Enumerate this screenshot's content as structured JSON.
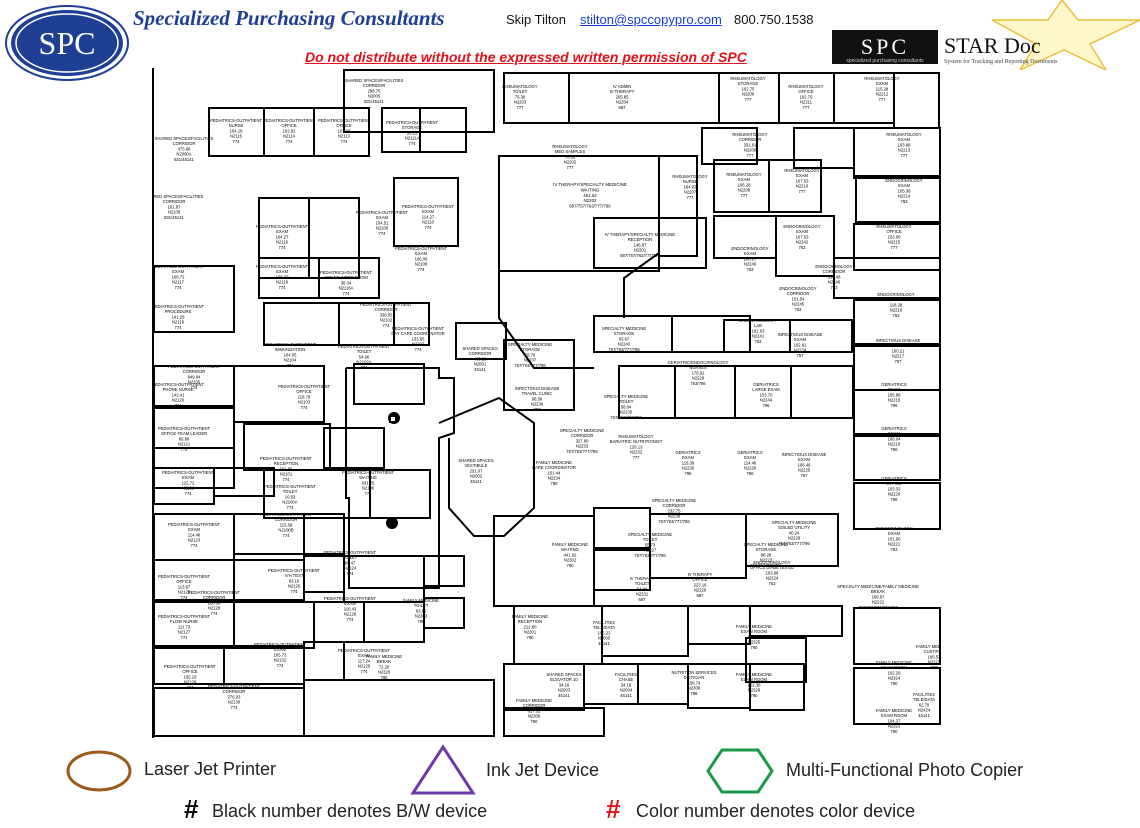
{
  "header": {
    "logo_text": "SPC",
    "company_name": "Specialized Purchasing Consultants",
    "contact_name": "Skip Tilton",
    "contact_email": "stilton@spccopypro.com",
    "contact_phone": "800.750.1538",
    "warning": "Do not distribute without the expressed written permission of SPC",
    "stardoc_logo": "SPC",
    "stardoc_title": "STAR Doc",
    "stardoc_tagline": "specialized purchasing consultants",
    "stardoc_subtitle": "System for Tracking and Reporting Documents"
  },
  "floorplan": {
    "rooms": [
      {
        "id": "r1",
        "lines": [
          "SHARED SPACES/FACILITIES",
          "CORRIDOR",
          "298.75",
          "N2005",
          "831/45141"
        ]
      },
      {
        "id": "r2",
        "lines": [
          "RHEUMATOLOGY",
          "TOILET",
          "75.30",
          "N2203",
          "777"
        ]
      },
      {
        "id": "r3",
        "lines": [
          "IV ADMIN",
          "IV THERAPY",
          "265.85",
          "N2204",
          "687"
        ]
      },
      {
        "id": "r4",
        "lines": [
          "RHEUMATOLOGY",
          "STORAGE",
          "102.75",
          "N2206",
          "777"
        ]
      },
      {
        "id": "r5",
        "lines": [
          "RHEUMATOLOGY",
          "OFFICE",
          "102.75",
          "N2211",
          "777"
        ]
      },
      {
        "id": "r6",
        "lines": [
          "RHEUMATOLOGY",
          "EXAM",
          "115.28",
          "N2212",
          "777"
        ]
      },
      {
        "id": "r7",
        "lines": [
          "PEDIATRICS-OUTPATIENT",
          "NURSE",
          "104.18",
          "N2115",
          "774"
        ]
      },
      {
        "id": "r8",
        "lines": [
          "PEDIATRICS-OUTPATIENT",
          "OFFICE",
          "102.82",
          "N2114",
          "774"
        ]
      },
      {
        "id": "r9",
        "lines": [
          "PEDIATRICS-OUTPATIENT",
          "OFFICE",
          "107.06",
          "N2113",
          "774"
        ]
      },
      {
        "id": "r10",
        "lines": [
          "PEDIATRICS-OUTPATIENT",
          "STORAGE",
          "56.15",
          "N2111A",
          "774"
        ]
      },
      {
        "id": "r11",
        "lines": [
          "SHARED SPACES/FACILITIES",
          "CORRIDOR",
          "473.68",
          "N2000A",
          "831/45141"
        ]
      },
      {
        "id": "r12",
        "lines": [
          "RHEUMATOLOGY",
          "CORRIDOR",
          "331.61",
          "N2200",
          "777"
        ]
      },
      {
        "id": "r13",
        "lines": [
          "RHEUMATOLOGY",
          "EXAM",
          "103.88",
          "N2213",
          "777"
        ]
      },
      {
        "id": "r14",
        "lines": [
          "RHEUMATOLOGY",
          "MED SAMPLES",
          "70.56",
          "N2202",
          "777"
        ]
      },
      {
        "id": "r15",
        "lines": [
          "IV THERAPY/SPECIALTY MEDICINE",
          "WAITING",
          "461.62",
          "N2202",
          "687/757/763/777/796"
        ]
      },
      {
        "id": "r16",
        "lines": [
          "RHEUMATOLOGY",
          "NURSE",
          "164.03",
          "N2207",
          "777"
        ]
      },
      {
        "id": "r17",
        "lines": [
          "RHEUMATOLOGY",
          "EXAM",
          "106.28",
          "N2208",
          "777"
        ]
      },
      {
        "id": "r18",
        "lines": [
          "RHEUMATOLOGY",
          "EXAM",
          "107.53",
          "N2210",
          "777"
        ]
      },
      {
        "id": "r19",
        "lines": [
          "ENDOCRINOLOGY",
          "EXAM",
          "105.38",
          "N2214",
          "763"
        ]
      },
      {
        "id": "r20",
        "lines": [
          "SHARED SPACES/FACILITIES",
          "CORRIDOR",
          "101.87",
          "N2108",
          "831/45141"
        ]
      },
      {
        "id": "r21",
        "lines": [
          "PEDIATRICS-OUTPATIENT",
          "EXAM",
          "114.27",
          "N2110",
          "774"
        ]
      },
      {
        "id": "r22",
        "lines": [
          "PEDIATRICS-OUTPATIENT",
          "EXAM",
          "104.51",
          "N2109",
          "774"
        ]
      },
      {
        "id": "r23",
        "lines": [
          "PEDIATRICS-OUTPATIENT",
          "EXAM",
          "104.27",
          "N2116",
          "774"
        ]
      },
      {
        "id": "r24",
        "lines": [
          "IV THERAPY/SPECIALTY MEDICINE",
          "RECEPTION",
          "146.87",
          "N2201",
          "687/757/763/777/796"
        ]
      },
      {
        "id": "r25",
        "lines": [
          "ENDOCRINOLOGY",
          "EXAM",
          "107.53",
          "N2242",
          "763"
        ]
      },
      {
        "id": "r26",
        "lines": [
          "ENDOCRINOLOGY",
          "EXAM",
          "108.27",
          "N2240",
          "763"
        ]
      },
      {
        "id": "r27",
        "lines": [
          "RHEUMATOLOGY",
          "OFFICE",
          "103.00",
          "N2215",
          "777"
        ]
      },
      {
        "id": "r28",
        "lines": [
          "PEDIATRICS-OUTPATIENT",
          "EXAM",
          "106.06",
          "N2108",
          "774"
        ]
      },
      {
        "id": "r29",
        "lines": [
          "PEDIATRICS-OUTPATIENT",
          "EXAM",
          "108.00",
          "N2118",
          "774"
        ]
      },
      {
        "id": "r30",
        "lines": [
          "PEDIATRICS-OUTPATIENT",
          "SOILED WORK ROOM",
          "38.34",
          "N2118A",
          "774"
        ]
      },
      {
        "id": "r31",
        "lines": [
          "ENDOCRINOLOGY",
          "CORRIDOR",
          "536.48",
          "N2246",
          "763"
        ]
      },
      {
        "id": "r32",
        "lines": [
          "PEDIATRICS-OUTPATIENT",
          "EXAM",
          "108.72",
          "N2117",
          "774"
        ]
      },
      {
        "id": "r33",
        "lines": [
          "ENDOCRINOLOGY",
          "CORRIDOR",
          "151.54",
          "N2245",
          "763"
        ]
      },
      {
        "id": "r34",
        "lines": [
          "ENDOCRINOLOGY",
          "SHARED OFFICE",
          "118.28",
          "N2216",
          "763"
        ]
      },
      {
        "id": "r35",
        "lines": [
          "PEDIATRICS-OUTPATIENT",
          "PROCEDURE",
          "141.28",
          "N2119",
          "774"
        ]
      },
      {
        "id": "r36",
        "lines": [
          "PEDIATRICS-OUTPATIENT",
          "CORRIDOR",
          "338.05",
          "N2102",
          "774"
        ]
      },
      {
        "id": "r37",
        "lines": [
          "SPECIALTY MEDICINE",
          "STORAGE",
          "83.67",
          "N2243",
          "757/763/777/796"
        ]
      },
      {
        "id": "r38",
        "lines": [
          "ENDOCRINOLOGY",
          "LAB",
          "102.63",
          "N2241",
          "763"
        ]
      },
      {
        "id": "r39",
        "lines": [
          "INFECTIOUS DISEASE",
          "EXAM",
          "102.81",
          "N2234",
          "757"
        ]
      },
      {
        "id": "r40",
        "lines": [
          "INFECTIOUS DISEASE",
          "OFFICE",
          "100.21",
          "N2217",
          "757"
        ]
      },
      {
        "id": "r41",
        "lines": [
          "PEDIATRICS-OUTPATIENT",
          "IMMUNIZATION",
          "104.05",
          "N2104",
          "774"
        ]
      },
      {
        "id": "r42",
        "lines": [
          "PEDIATRICS-OUTPATIENT",
          "TOILET",
          "54.66",
          "N2102A",
          "774"
        ]
      },
      {
        "id": "r43",
        "lines": [
          "PEDIATRICS-OUTPATIENT",
          "DAY CARE COORDINATOR",
          "133.85",
          "N2107",
          "774"
        ]
      },
      {
        "id": "r44",
        "lines": [
          "SHARED SPACES",
          "CORRIDOR",
          "463.29",
          "N2001",
          "45141"
        ]
      },
      {
        "id": "r45",
        "lines": [
          "SPECIALTY MEDICINE",
          "STORAGE",
          "78.70",
          "N2237",
          "757/763/777/796"
        ]
      },
      {
        "id": "r46",
        "lines": [
          "GERIATRIC/ENDOCRINOLOGY",
          "NURSES",
          "176.91",
          "N2229",
          "763/796"
        ]
      },
      {
        "id": "r47",
        "lines": [
          "GERIATRICS",
          "LARGE EXAM",
          "153.70",
          "N2244",
          "796"
        ]
      },
      {
        "id": "r48",
        "lines": [
          "GERIATRICS",
          "EXAM",
          "105.88",
          "N2218",
          "796"
        ]
      },
      {
        "id": "r49",
        "lines": [
          "PEDIATRICS-OUTPATIENT",
          "CORRIDOR",
          "849.84",
          "N2105",
          "774"
        ]
      },
      {
        "id": "r50",
        "lines": [
          "PEDIATRICS-OUTPATIENT",
          "OFFICE",
          "118.79",
          "N2103",
          "774"
        ]
      },
      {
        "id": "r51",
        "lines": [
          "INFECTIOUS DISEASE",
          "TRAVEL CLINIC",
          "98.58",
          "N2236",
          "757"
        ]
      },
      {
        "id": "r52",
        "lines": [
          "SPECIALTY MEDICINE",
          "TOILET",
          "58.04",
          "N2235",
          "757/763/777/796"
        ]
      },
      {
        "id": "r53",
        "lines": [
          "PEDIATRICS-OUTPATIENT",
          "PHONE NURSE",
          "142.41",
          "N2120",
          "774"
        ]
      },
      {
        "id": "r54",
        "lines": [
          "PEDIATRICS-OUTPATIENT",
          "OFFICE-TEAM LEADER",
          "80.86",
          "N2121",
          "774"
        ]
      },
      {
        "id": "r55",
        "lines": [
          "SPECIALTY MEDICINE",
          "CORRIDOR",
          "327.80",
          "N2233",
          "757/763/777/796"
        ]
      },
      {
        "id": "r56",
        "lines": [
          "RHEUMATOLOGY",
          "BARIATRIC NUTRITIONIST",
          "126.13",
          "N2232",
          "777"
        ]
      },
      {
        "id": "r57",
        "lines": [
          "GERIATRICS",
          "EXAM",
          "119.39",
          "N2230",
          "796"
        ]
      },
      {
        "id": "r58",
        "lines": [
          "GERIATRICS",
          "EXAM",
          "114.46",
          "N2226",
          "796"
        ]
      },
      {
        "id": "r59",
        "lines": [
          "INFECTIOUS DISEASE",
          "EXAM",
          "108.48",
          "N2225",
          "757"
        ]
      },
      {
        "id": "r60",
        "lines": [
          "GERIATRICS",
          "EXAM",
          "108.04",
          "N2219",
          "796"
        ]
      },
      {
        "id": "r61",
        "lines": [
          "PEDIATRICS-OUTPATIENT",
          "RECEPTION",
          "161.86",
          "N2101",
          "774"
        ]
      },
      {
        "id": "r62",
        "lines": [
          "SHARED SPACES",
          "VESTIBULE",
          "231.07",
          "N2002",
          "45141"
        ]
      },
      {
        "id": "r63",
        "lines": [
          "FAMILY MEDICINE",
          "CARE COORDINATOR",
          "151.44",
          "N2234",
          "790"
        ]
      },
      {
        "id": "r64",
        "lines": [
          "PEDIATRICS-OUTPATIENT",
          "EXAM",
          "122.72",
          "N2122",
          "774"
        ]
      },
      {
        "id": "r65",
        "lines": [
          "PEDIATRICS-OUTPATIENT",
          "WAITING",
          "631.25",
          "N2100",
          "774"
        ]
      },
      {
        "id": "r66",
        "lines": [
          "PEDIATRICS-OUTPATIENT",
          "TOILET",
          "10.63",
          "N2100A",
          "774"
        ]
      },
      {
        "id": "r67",
        "lines": [
          "GERIATRICS",
          "OFFICE",
          "103.33",
          "N2220",
          "796"
        ]
      },
      {
        "id": "r68",
        "lines": [
          "SPECIALTY MEDICINE",
          "CORRIDOR",
          "232.75",
          "N2238",
          "757/763/777/796"
        ]
      },
      {
        "id": "r69",
        "lines": [
          "PEDIATRICS-OUTPATIENT",
          "EXAM",
          "114.46",
          "N2123",
          "774"
        ]
      },
      {
        "id": "r70",
        "lines": [
          "PEDIATRICS-OUTPATIENT",
          "CORRIDOR",
          "115.58",
          "N2100B",
          "774"
        ]
      },
      {
        "id": "r71",
        "lines": [
          "SPECIALTY MEDICINE",
          "TOILET",
          "55.73",
          "N2227",
          "757/763/777/796"
        ]
      },
      {
        "id": "r72",
        "lines": [
          "SPECIALTY MEDICINE",
          "SOILED UTILITY",
          "40.24",
          "N2228",
          "757/763/777/796"
        ]
      },
      {
        "id": "r73",
        "lines": [
          "ENDOCRINOLOGY",
          "EXAM",
          "101.90",
          "N2221",
          "763"
        ]
      },
      {
        "id": "r74",
        "lines": [
          "FAMILY MEDICINE",
          "WAITING",
          "441.92",
          "N2302",
          "790"
        ]
      },
      {
        "id": "r75",
        "lines": [
          "PEDIATRICS-OUTPATIENT",
          "TOILET",
          "68.47",
          "N2124",
          "774"
        ]
      },
      {
        "id": "r76",
        "lines": [
          "PEDIATRICS-OUTPATIENT",
          "OFFICE",
          "113.87",
          "N2125",
          "774"
        ]
      },
      {
        "id": "r77",
        "lines": [
          "SPECIALTY MEDICINE",
          "STORAGE",
          "88.28",
          "N2223",
          "757/763/777/796"
        ]
      },
      {
        "id": "r78",
        "lines": [
          "ENDOCRINOLOGY",
          "OFFICE DIABETES ED",
          "103.68",
          "N2224",
          "763"
        ]
      },
      {
        "id": "r79",
        "lines": [
          "PEDIATRICS-OUTPATIENT",
          "V/H TEST",
          "63.10",
          "N2126",
          "774"
        ]
      },
      {
        "id": "r80",
        "lines": [
          "IV THERAPY",
          "TOILET",
          "64.04",
          "N2231",
          "687"
        ]
      },
      {
        "id": "r81",
        "lines": [
          "IV THERAPY",
          "OFFICE",
          "223.16",
          "N2229",
          "687"
        ]
      },
      {
        "id": "r82",
        "lines": [
          "SPECIALTY MEDICINE/FAMILY MEDICINE",
          "BREAK",
          "168.87",
          "N2222",
          "757/763/777/790/796"
        ]
      },
      {
        "id": "r83",
        "lines": [
          "PEDIATRICS-OUTPATIENT",
          "CORRIDOR",
          "226.56",
          "N2128",
          "774"
        ]
      },
      {
        "id": "r84",
        "lines": [
          "PEDIATRICS-OUTPATIENT",
          "EXAM",
          "110.43",
          "N2128",
          "774"
        ]
      },
      {
        "id": "r85",
        "lines": [
          "FAMILY MEDICINE",
          "TOILET",
          "63.85",
          "N2303",
          "790"
        ]
      },
      {
        "id": "r86",
        "lines": [
          "PEDIATRICS-OUTPATIENT",
          "FLOW NURSE",
          "111.73",
          "N2127",
          "774"
        ]
      },
      {
        "id": "r87",
        "lines": [
          "FAMILY MEDICINE",
          "RECEPTION",
          "212.80",
          "N2301",
          "790"
        ]
      },
      {
        "id": "r88",
        "lines": [
          "FACILITIES",
          "TELE/DATA",
          "106.22",
          "N2005",
          "45141"
        ]
      },
      {
        "id": "r89",
        "lines": [
          "FAMILY MEDICINE",
          "EXAM ROOM",
          "104.40",
          "N2325",
          "790"
        ]
      },
      {
        "id": "r90",
        "lines": [
          "FAMILY MEDICINE",
          "CUST/PAC",
          "185.53",
          "N2223",
          "790"
        ]
      },
      {
        "id": "r91",
        "lines": [
          "PEDIATRICS-OUTPATIENT",
          "EXAM",
          "105.73",
          "N2132",
          "774"
        ]
      },
      {
        "id": "r92",
        "lines": [
          "PEDIATRICS-OUTPATIENT",
          "EXAM",
          "117.24",
          "N2129",
          "774"
        ]
      },
      {
        "id": "r93",
        "lines": [
          "FAMILY MEDICINE",
          "BREAK",
          "72.20",
          "N2326",
          "790"
        ]
      },
      {
        "id": "r94",
        "lines": [
          "FAMILY MEDICINE",
          "EXAM ROOM",
          "102.29",
          "N2324",
          "790"
        ]
      },
      {
        "id": "r95",
        "lines": [
          "PEDIATRICS-OUTPATIENT",
          "OFFICE",
          "105.19",
          "N2129",
          "774"
        ]
      },
      {
        "id": "r96",
        "lines": [
          "SHARED SPACES",
          "ELEVATOR 10",
          "34.16",
          "N2003",
          "45141"
        ]
      },
      {
        "id": "r97",
        "lines": [
          "FACILITIES",
          "CHASE",
          "34.16",
          "N2004",
          "45141"
        ]
      },
      {
        "id": "r98",
        "lines": [
          "NUTRITION SERVICES",
          "DIETICIAN",
          "158.74",
          "N2308",
          "786"
        ]
      },
      {
        "id": "r99",
        "lines": [
          "FAMILY MEDICINE",
          "EXAM ROOM",
          "102.38",
          "N2328",
          "790"
        ]
      },
      {
        "id": "r100",
        "lines": [
          "FACILITIES",
          "TELE/DATA",
          "62.70",
          "N2424",
          "45141"
        ]
      },
      {
        "id": "r101",
        "lines": [
          "PEDIATRICS-OUTPATIENT",
          "CORRIDOR",
          "276.03",
          "N2130",
          "774"
        ]
      },
      {
        "id": "r102",
        "lines": [
          "FAMILY MEDICINE",
          "CORRIDOR",
          "817.32",
          "N2306",
          "790"
        ]
      },
      {
        "id": "r103",
        "lines": [
          "FAMILY MEDICINE",
          "EXAM ROOM",
          "104.37",
          "N2323",
          "790"
        ]
      }
    ]
  },
  "legend": {
    "laser": {
      "label": "Laser Jet Printer",
      "color": "#9a5a1c",
      "icon": "circle-icon"
    },
    "inkjet": {
      "label": "Ink Jet Device",
      "color": "#6c3aa6",
      "icon": "triangle-icon"
    },
    "mfp": {
      "label": "Multi-Functional Photo Copier",
      "color": "#1a9a4a",
      "icon": "hexagon-icon"
    },
    "bw": {
      "symbol": "#",
      "label": "Black number denotes B/W device",
      "color": "#000000"
    },
    "color": {
      "symbol": "#",
      "label": "Color number denotes color device",
      "color": "#e3101a"
    }
  }
}
